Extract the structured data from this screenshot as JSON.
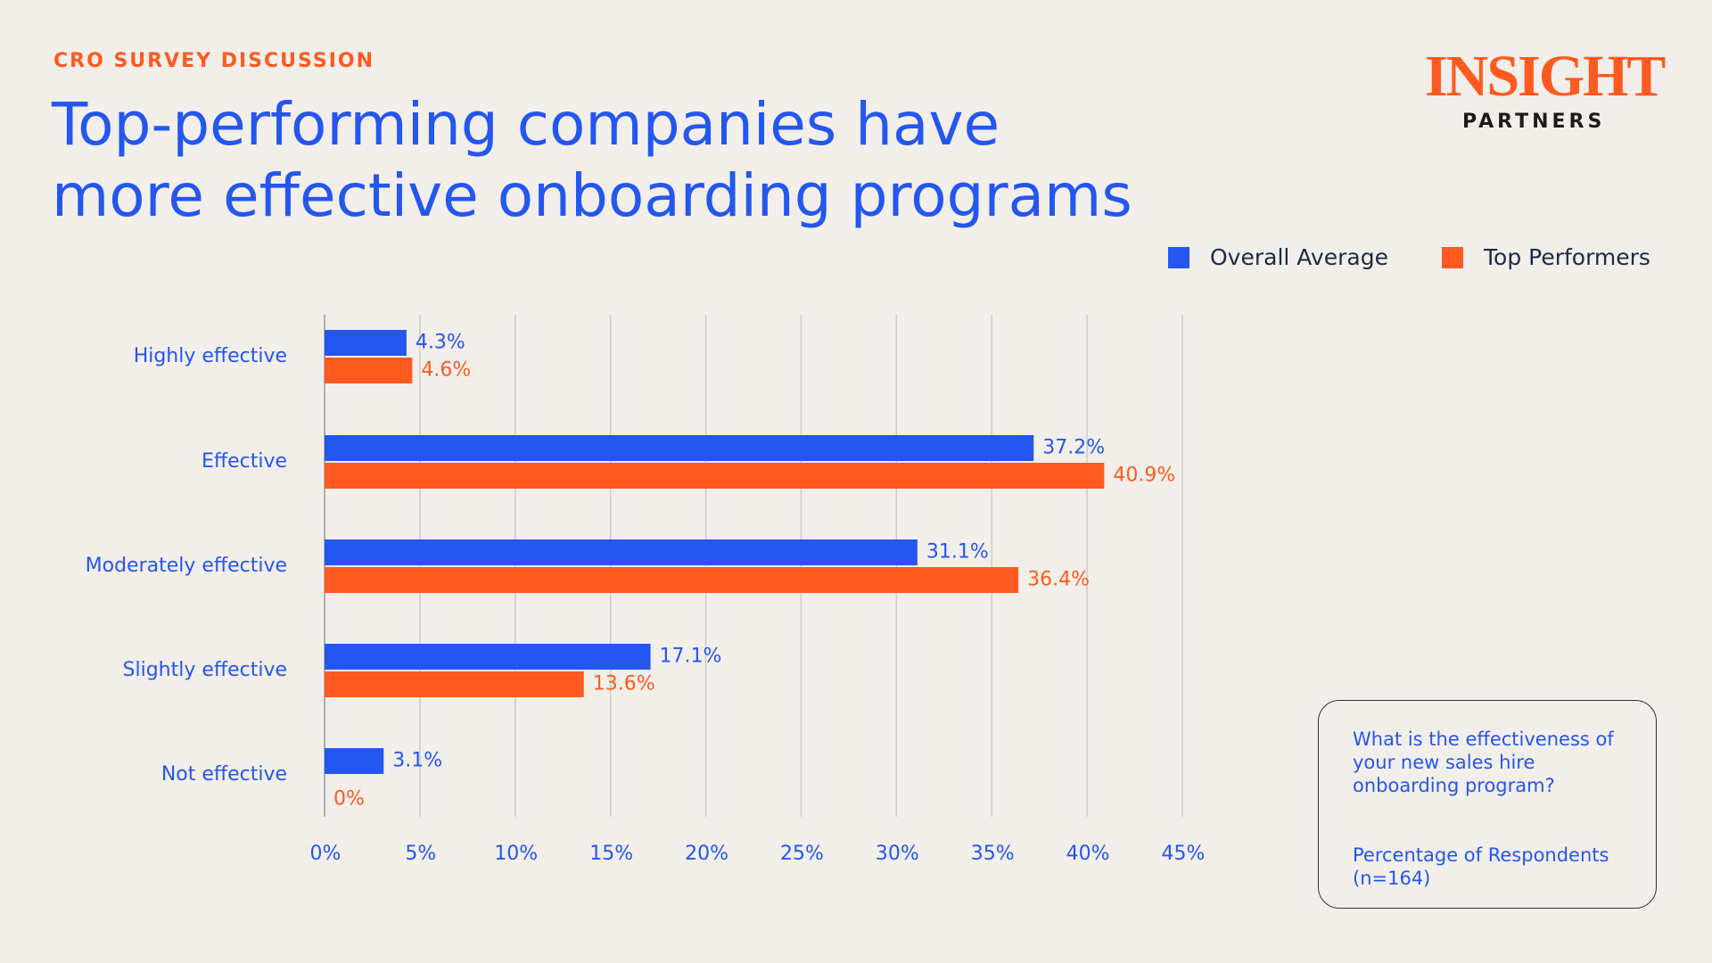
{
  "header": {
    "kicker": "CRO SURVEY DISCUSSION",
    "logo": "INSIGHT",
    "logo_sub": "PARTNERS"
  },
  "chart_data": {
    "type": "hbar",
    "title": [
      "Top-performing companies have",
      "more effective onboarding programs"
    ],
    "categories": [
      "Highly effective",
      "Effective",
      "Moderately effective",
      "Slightly effective",
      "Not effective"
    ],
    "series": [
      {
        "name": "Overall Average",
        "color": "#2456f0",
        "values": [
          4.3,
          37.2,
          31.1,
          17.1,
          3.1
        ],
        "value_labels": [
          "4.3%",
          "37.2%",
          "31.1%",
          "17.1%",
          "3.1%"
        ]
      },
      {
        "name": "Top Performers",
        "color": "#ff5a1f",
        "values": [
          4.6,
          40.9,
          36.4,
          13.6,
          0
        ],
        "value_labels": [
          "4.6%",
          "40.9%",
          "36.4%",
          "13.6%",
          "0%"
        ]
      }
    ],
    "xlim": [
      0,
      45
    ],
    "xticks": [
      {
        "value": 0,
        "label": "0%"
      },
      {
        "value": 5,
        "label": "5%"
      },
      {
        "value": 10,
        "label": "10%"
      },
      {
        "value": 15,
        "label": "15%"
      },
      {
        "value": 20,
        "label": "20%"
      },
      {
        "value": 25,
        "label": "25%"
      },
      {
        "value": 30,
        "label": "30%"
      },
      {
        "value": 35,
        "label": "35%"
      },
      {
        "value": 40,
        "label": "40%"
      },
      {
        "value": 45,
        "label": "45%"
      }
    ],
    "grid": true
  },
  "note": {
    "question": "What is the effectiveness of your new sales hire onboarding program?",
    "caption": "Percentage of Respondents (n=164)"
  }
}
